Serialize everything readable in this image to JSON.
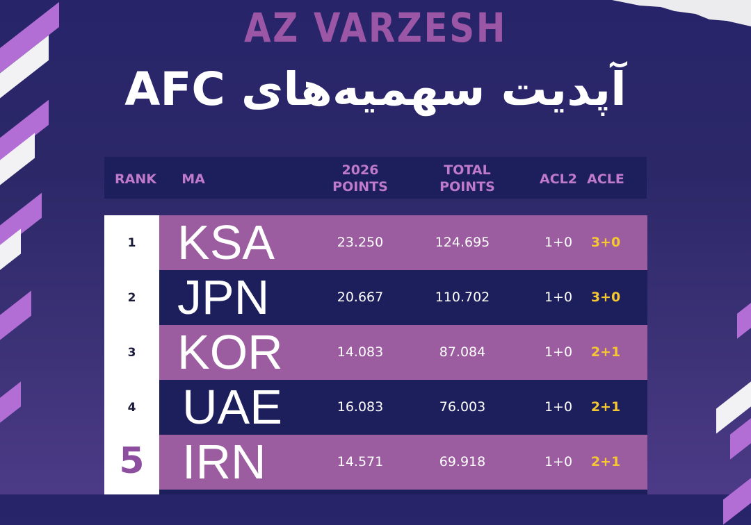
{
  "brand": "AZ VARZESH",
  "title": "آپدیت سهمیه‌های AFC",
  "headers": {
    "rank": "RANK",
    "ma": "MA",
    "points2026_l1": "2026",
    "points2026_l2": "POINTS",
    "total_l1": "TOTAL",
    "total_l2": "POINTS",
    "acl2": "ACL2",
    "acle": "ACLE"
  },
  "rows": [
    {
      "rank": "1",
      "code": "KSA",
      "points2026": "23.250",
      "total": "124.695",
      "acl2": "1+0",
      "acle": "3+0"
    },
    {
      "rank": "2",
      "code": "JPN",
      "points2026": "20.667",
      "total": "110.702",
      "acl2": "1+0",
      "acle": "3+0"
    },
    {
      "rank": "3",
      "code": "KOR",
      "points2026": "14.083",
      "total": "87.084",
      "acl2": "1+0",
      "acle": "2+1"
    },
    {
      "rank": "4",
      "code": "UAE",
      "points2026": "16.083",
      "total": "76.003",
      "acl2": "1+0",
      "acle": "2+1"
    },
    {
      "rank": "5",
      "code": "IRN",
      "points2026": "14.571",
      "total": "69.918",
      "acl2": "1+0",
      "acle": "2+1"
    }
  ],
  "colors": {
    "background": "#2c2868",
    "row_purple": "#9c5ca0",
    "row_navy": "#1d1f5c",
    "header_text": "#c07acb",
    "acle_text": "#f4c733",
    "brand_text": "#9b56a6"
  }
}
